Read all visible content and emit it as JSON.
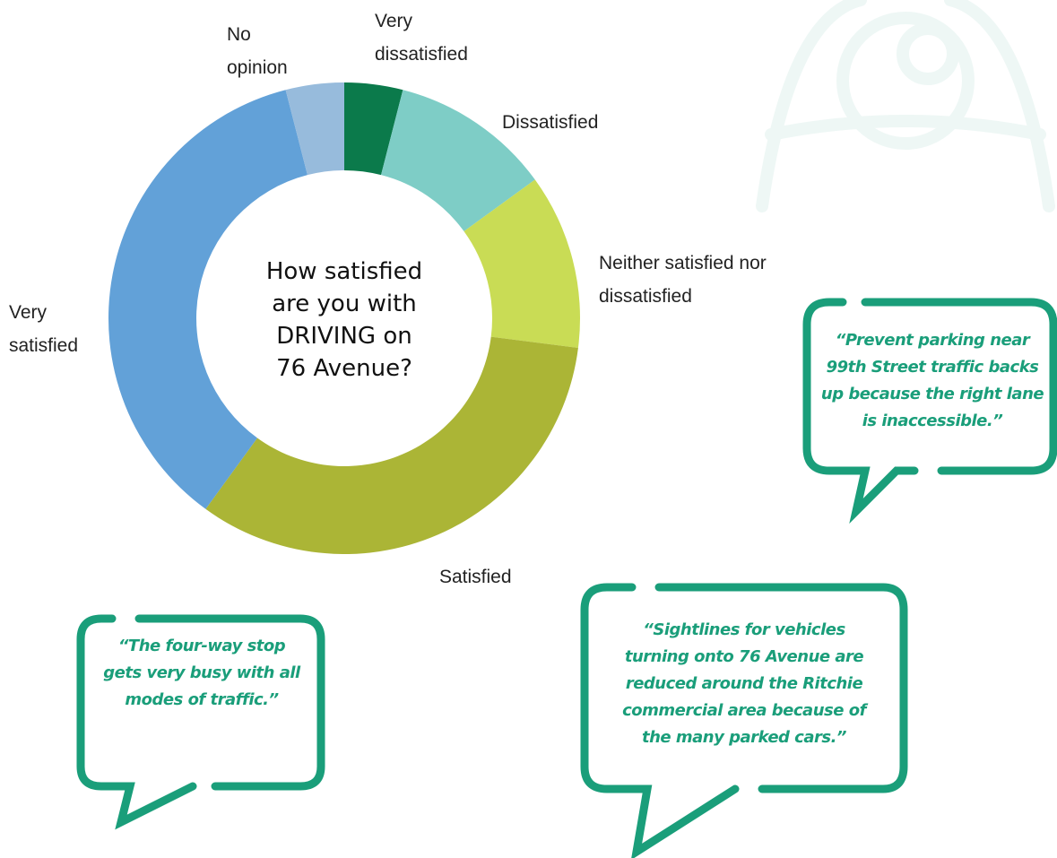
{
  "chart_data": {
    "type": "donut",
    "title_lines": [
      "How satisfied",
      "are you with",
      "DRIVING on",
      "76 Avenue?"
    ],
    "categories": [
      "Very dissatisfied",
      "Dissatisfied",
      "Neither satisfied nor dissatisfied",
      "Satisfied",
      "Very satisfied",
      "No opinion"
    ],
    "values": [
      4,
      11,
      12,
      33,
      36,
      4
    ],
    "colors": [
      "#0b7a4b",
      "#7ecdc6",
      "#c9dc55",
      "#abb536",
      "#62a1d8",
      "#97bbdc"
    ]
  },
  "quotes": [
    "“Prevent parking near 99th Street traffic backs up because the right lane is inaccessible.”",
    "“The four-way stop gets very busy with all modes of traffic.”",
    "“Sightlines for vehicles turning onto 76 Avenue are reduced around the Ritchie commercial area because of the many parked cars.”"
  ]
}
